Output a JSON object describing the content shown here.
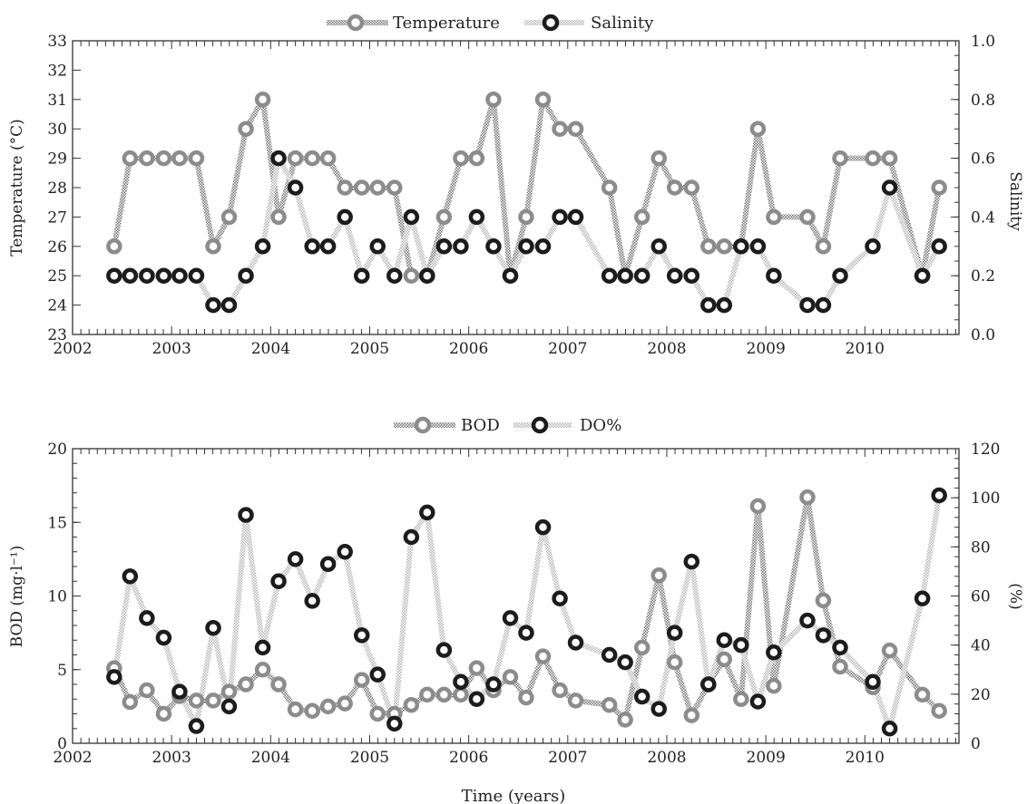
{
  "xlabel": "Time (years)",
  "chart_data": [
    {
      "type": "line",
      "x_ticks": [
        "2002",
        "2003",
        "2004",
        "2005",
        "2006",
        "2007",
        "2008",
        "2009",
        "2010"
      ],
      "xlim": [
        2002,
        2010.95
      ],
      "left_axis": {
        "label": "Temperature (°C)",
        "lim": [
          23,
          33
        ],
        "ticks": [
          "23",
          "24",
          "25",
          "26",
          "27",
          "28",
          "29",
          "30",
          "31",
          "32",
          "33"
        ]
      },
      "right_axis": {
        "label": "Salinity",
        "lim": [
          0,
          1
        ],
        "ticks": [
          "0.0",
          "0.2",
          "0.4",
          "0.6",
          "0.8",
          "1.0"
        ]
      },
      "legend_position": "top-center",
      "series": [
        {
          "name": "Temperature",
          "axis": "left",
          "style": "gray",
          "x": [
            2002.42,
            2002.58,
            2002.75,
            2002.92,
            2003.08,
            2003.25,
            2003.42,
            2003.58,
            2003.75,
            2003.92,
            2004.08,
            2004.25,
            2004.42,
            2004.58,
            2004.75,
            2004.92,
            2005.08,
            2005.25,
            2005.42,
            2005.58,
            2005.75,
            2005.92,
            2006.08,
            2006.25,
            2006.42,
            2006.58,
            2006.75,
            2006.92,
            2007.08,
            2007.42,
            2007.58,
            2007.75,
            2007.92,
            2008.08,
            2008.25,
            2008.42,
            2008.58,
            2008.75,
            2008.92,
            2009.08,
            2009.42,
            2009.58,
            2009.75,
            2010.08,
            2010.25,
            2010.58,
            2010.75
          ],
          "y": [
            26,
            29,
            29,
            29,
            29,
            29,
            26,
            27,
            30,
            31,
            27,
            29,
            29,
            29,
            28,
            28,
            28,
            28,
            25,
            25,
            27,
            29,
            29,
            31,
            25,
            27,
            31,
            30,
            30,
            28,
            25,
            27,
            29,
            28,
            28,
            26,
            26,
            26,
            30,
            27,
            27,
            26,
            29,
            29,
            29,
            25,
            28
          ]
        },
        {
          "name": "Salinity",
          "axis": "right",
          "style": "black",
          "x": [
            2002.42,
            2002.58,
            2002.75,
            2002.92,
            2003.08,
            2003.25,
            2003.42,
            2003.58,
            2003.75,
            2003.92,
            2004.08,
            2004.25,
            2004.42,
            2004.58,
            2004.75,
            2004.92,
            2005.08,
            2005.25,
            2005.42,
            2005.58,
            2005.75,
            2005.92,
            2006.08,
            2006.25,
            2006.42,
            2006.58,
            2006.75,
            2006.92,
            2007.08,
            2007.42,
            2007.58,
            2007.75,
            2007.92,
            2008.08,
            2008.25,
            2008.42,
            2008.58,
            2008.75,
            2008.92,
            2009.08,
            2009.42,
            2009.58,
            2009.75,
            2010.08,
            2010.25,
            2010.58,
            2010.75
          ],
          "y": [
            0.2,
            0.2,
            0.2,
            0.2,
            0.2,
            0.2,
            0.1,
            0.1,
            0.2,
            0.3,
            0.6,
            0.5,
            0.3,
            0.3,
            0.4,
            0.2,
            0.3,
            0.2,
            0.4,
            0.2,
            0.3,
            0.3,
            0.4,
            0.3,
            0.2,
            0.3,
            0.3,
            0.4,
            0.4,
            0.2,
            0.2,
            0.2,
            0.3,
            0.2,
            0.2,
            0.1,
            0.1,
            0.3,
            0.3,
            0.2,
            0.1,
            0.1,
            0.2,
            0.3,
            0.5,
            0.2,
            0.3
          ]
        }
      ]
    },
    {
      "type": "line",
      "x_ticks": [
        "2002",
        "2003",
        "2004",
        "2005",
        "2006",
        "2007",
        "2008",
        "2009",
        "2010"
      ],
      "xlim": [
        2002,
        2010.95
      ],
      "left_axis": {
        "label": "BOD (mg·l⁻¹)",
        "lim": [
          0,
          20
        ],
        "ticks": [
          "0",
          "5",
          "10",
          "15",
          "20"
        ]
      },
      "right_axis": {
        "label": "(%)",
        "lim": [
          0,
          120
        ],
        "ticks": [
          "0",
          "20",
          "40",
          "60",
          "80",
          "100",
          "120"
        ]
      },
      "legend_position": "top-center",
      "series": [
        {
          "name": "BOD",
          "axis": "left",
          "style": "gray",
          "x": [
            2002.42,
            2002.58,
            2002.75,
            2002.92,
            2003.08,
            2003.25,
            2003.42,
            2003.58,
            2003.75,
            2003.92,
            2004.08,
            2004.25,
            2004.42,
            2004.58,
            2004.75,
            2004.92,
            2005.08,
            2005.25,
            2005.42,
            2005.58,
            2005.75,
            2005.92,
            2006.08,
            2006.25,
            2006.42,
            2006.58,
            2006.75,
            2006.92,
            2007.08,
            2007.42,
            2007.58,
            2007.75,
            2007.92,
            2008.08,
            2008.25,
            2008.42,
            2008.58,
            2008.75,
            2008.92,
            2009.08,
            2009.42,
            2009.58,
            2009.75,
            2010.08,
            2010.25,
            2010.58,
            2010.75
          ],
          "y": [
            5.1,
            2.8,
            3.6,
            2.0,
            3.2,
            2.9,
            2.9,
            3.5,
            4.0,
            5.0,
            4.0,
            2.3,
            2.2,
            2.5,
            2.7,
            4.3,
            2.0,
            2.0,
            2.6,
            3.3,
            3.3,
            3.3,
            5.1,
            3.6,
            4.5,
            3.1,
            5.9,
            3.6,
            2.9,
            2.6,
            1.6,
            6.5,
            11.4,
            5.5,
            1.9,
            4.0,
            5.7,
            3.0,
            16.1,
            3.9,
            16.7,
            9.7,
            5.2,
            3.8,
            6.3,
            3.3,
            2.2
          ]
        },
        {
          "name": "DO%",
          "axis": "right",
          "style": "black",
          "x": [
            2002.42,
            2002.58,
            2002.75,
            2002.92,
            2003.08,
            2003.25,
            2003.42,
            2003.58,
            2003.75,
            2003.92,
            2004.08,
            2004.25,
            2004.42,
            2004.58,
            2004.75,
            2004.92,
            2005.08,
            2005.25,
            2005.42,
            2005.58,
            2005.75,
            2005.92,
            2006.08,
            2006.25,
            2006.42,
            2006.58,
            2006.75,
            2006.92,
            2007.08,
            2007.42,
            2007.58,
            2007.75,
            2007.92,
            2008.08,
            2008.25,
            2008.42,
            2008.58,
            2008.75,
            2008.92,
            2009.08,
            2009.42,
            2009.58,
            2009.75,
            2010.08,
            2010.25,
            2010.58,
            2010.75
          ],
          "y": [
            27,
            68,
            51,
            43,
            21,
            7,
            47,
            15,
            93,
            39,
            66,
            75,
            58,
            73,
            78,
            44,
            28,
            8,
            84,
            94,
            38,
            25,
            18,
            24,
            51,
            45,
            88,
            59,
            41,
            36,
            33,
            19,
            14,
            45,
            74,
            24,
            42,
            40,
            17,
            37,
            50,
            44,
            39,
            25,
            6,
            59,
            101
          ]
        }
      ]
    }
  ]
}
